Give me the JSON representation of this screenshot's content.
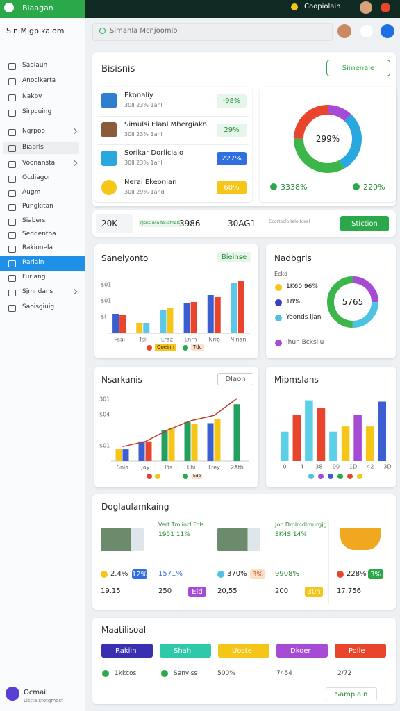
{
  "topbar": {
    "brand": "Biaagan",
    "user": "Coopiolain"
  },
  "sidebar": {
    "title": "Sin Migplkaiom",
    "items": [
      "Saolaun",
      "Anoclkarta",
      "Nakby",
      "Sirpcuing",
      "Nqrpoo",
      "Biaprls",
      "Voonansta",
      "Ocdiagon",
      "Augm",
      "Pungkitan",
      "Siabers",
      "Seddentha",
      "Rakionela",
      "Rariain",
      "Furlang",
      "Sjmndans",
      "Saoisgiuig"
    ],
    "footer": {
      "title": "Ocmail",
      "subtitle": "Listta stotgmost"
    }
  },
  "search": {
    "placeholder": "Simanla Mcnjoomio"
  },
  "overview": {
    "title": "Bisisnis",
    "button": "Simenaie",
    "rows": [
      {
        "title": "Ekonaliy",
        "subtitle": "30ll 23%  1anl",
        "badge": "-98%"
      },
      {
        "title": "Simulsi Elanl Mhergiakn",
        "subtitle": "30ll 23%  1anl",
        "badge": "29%"
      },
      {
        "title": "Sorikar Dorliclalo",
        "subtitle": "30ll 23%  1anl",
        "badge": "227%"
      },
      {
        "title": "Nerai Ekeonian",
        "subtitle": "30ll 29%  1and",
        "badge": "60%"
      }
    ],
    "donut": {
      "center": "299%",
      "segments": [
        {
          "value": 12,
          "color": "#a64bd6"
        },
        {
          "value": 30,
          "color": "#29a8e0"
        },
        {
          "value": 33,
          "color": "#3cb54a"
        },
        {
          "value": 25,
          "color": "#e8452c"
        }
      ],
      "legend": [
        "3338%",
        "220%"
      ]
    }
  },
  "stats": {
    "items": [
      "20K",
      "3986",
      "30AG1"
    ],
    "notes": [
      "Qsnsluco teuatnels",
      "Cocstoolo telo toxal"
    ],
    "button": "Stiction"
  },
  "sales": {
    "title": "Sanelyonto",
    "button": "Bieinse",
    "axis_labels": [
      "$01",
      "$01",
      "$l"
    ],
    "ylim": [
      0,
      80
    ],
    "groups": [
      {
        "label": "Fsai",
        "values": [
          28,
          27
        ],
        "colors": [
          "#3b5fd1",
          "#e8452c"
        ]
      },
      {
        "label": "Tsil",
        "values": [
          15,
          15
        ],
        "colors": [
          "#f5c518",
          "#5bc8e8"
        ]
      },
      {
        "label": "Lraz",
        "values": [
          33,
          36
        ],
        "colors": [
          "#5bc8e8",
          "#f5c518"
        ]
      },
      {
        "label": "Lnrn",
        "values": [
          43,
          45
        ],
        "colors": [
          "#3b5fd1",
          "#e8452c"
        ]
      },
      {
        "label": "Nrie",
        "values": [
          55,
          52
        ],
        "colors": [
          "#3b5fd1",
          "#e8452c"
        ]
      },
      {
        "label": "Ninan",
        "values": [
          72,
          76
        ],
        "colors": [
          "#5bc8e8",
          "#e8452c"
        ]
      }
    ],
    "legend": [
      "Ooeinn",
      "Tdc"
    ]
  },
  "shares": {
    "title": "Nadbgris",
    "header": "Eckd",
    "rows": [
      "1K60 96%",
      "18%",
      "Yoonds ljan"
    ],
    "footer": "Ihun Bcksiiu",
    "center": "5765",
    "segments": [
      {
        "value": 25,
        "color": "#a64bd6"
      },
      {
        "value": 25,
        "color": "#4cc3e0"
      },
      {
        "value": 50,
        "color": "#3cb54a"
      }
    ]
  },
  "markets": {
    "title": "Nsarkanis",
    "button": "Dlaon",
    "axis_labels": [
      "301",
      "$04",
      "$01"
    ],
    "ylim": [
      0,
      100
    ],
    "groups": [
      {
        "label": "Snia",
        "values": [
          18,
          18
        ],
        "colors": [
          "#f5c518",
          "#3b5fd1"
        ]
      },
      {
        "label": "Jay",
        "values": [
          30,
          30
        ],
        "colors": [
          "#3b5fd1",
          "#e8452c"
        ]
      },
      {
        "label": "Pis",
        "values": [
          47,
          50
        ],
        "colors": [
          "#23a060",
          "#f5c518"
        ]
      },
      {
        "label": "Lhi",
        "values": [
          60,
          57
        ],
        "colors": [
          "#23a060",
          "#f5c518"
        ]
      },
      {
        "label": "Frey",
        "values": [
          58,
          65
        ],
        "colors": [
          "#3b5fd1",
          "#f5c518"
        ]
      },
      {
        "label": "2Ath",
        "values": [
          87
        ],
        "colors": [
          "#23a060"
        ]
      }
    ],
    "line": [
      22,
      30,
      48,
      62,
      70,
      96
    ],
    "legend": [
      "Edo"
    ]
  },
  "maps": {
    "title": "Mipmslans",
    "labels": [
      "0",
      "4",
      "38",
      "90",
      "1D",
      "42",
      "3D"
    ],
    "ylim": [
      0,
      100
    ],
    "bars": [
      {
        "value": 45,
        "color": "#5bd0e8"
      },
      {
        "value": 71,
        "color": "#e8452c"
      },
      {
        "value": 93,
        "color": "#5bd0e8"
      },
      {
        "value": 81,
        "color": "#e8452c"
      },
      {
        "value": 45,
        "color": "#5bd0e8"
      },
      {
        "value": 53,
        "color": "#f5c518"
      },
      {
        "value": 71,
        "color": "#a64bd6"
      },
      {
        "value": 53,
        "color": "#f5c518"
      },
      {
        "value": 91,
        "color": "#3b5fd1"
      }
    ]
  },
  "products": {
    "title": "Doglaulamkaing",
    "items": [
      {
        "title": "Vert Tmiincl Fols",
        "subtitle": "1951 11%",
        "stat": "2.4%",
        "badge": "12%",
        "stat2": "1571%",
        "total": "19.15",
        "total2": "250",
        "tag": "Eld"
      },
      {
        "title": "Jon Dmlmdlmurgjg",
        "subtitle": "SK4S 14%",
        "stat": "370%",
        "badge": "3%",
        "stat2": "9908%",
        "total": "20,55",
        "total2": "200",
        "tag": "30n"
      },
      {
        "stat": "228%",
        "badge": "3%",
        "total": "17.756"
      }
    ]
  },
  "materials": {
    "title": "Maatilisoal",
    "buttons": [
      "Rakiin",
      "Shah",
      "Uoste",
      "Dkoer",
      "Polle"
    ],
    "footer": [
      "1kkcos",
      "Sanyiss",
      "500%",
      "7454",
      "2/72"
    ],
    "button": "Sampiain"
  }
}
